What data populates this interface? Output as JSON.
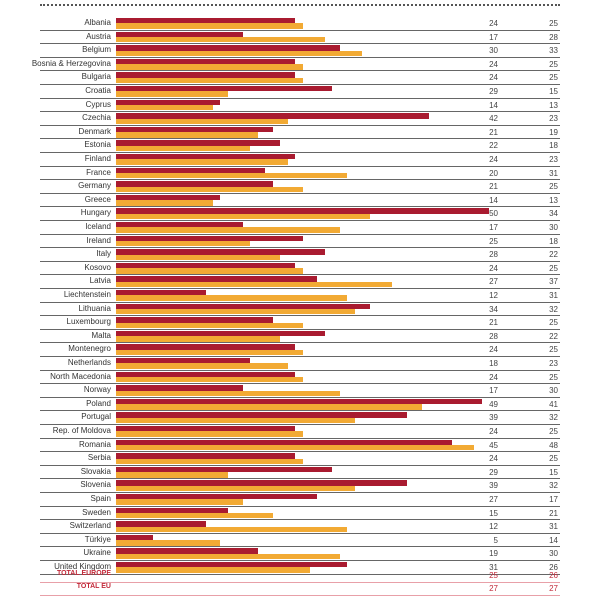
{
  "chart_data": {
    "type": "bar",
    "orientation": "horizontal",
    "title": "",
    "xlabel": "",
    "ylabel": "",
    "xlim": [
      0,
      50
    ],
    "colors": {
      "series_red": "#a91b30",
      "series_orange": "#f2aa34",
      "totals_text": "#c22a3a"
    },
    "categories": [
      "Albania",
      "Austria",
      "Belgium",
      "Bosnia & Herzegovina",
      "Bulgaria",
      "Croatia",
      "Cyprus",
      "Czechia",
      "Denmark",
      "Estonia",
      "Finland",
      "France",
      "Germany",
      "Greece",
      "Hungary",
      "Iceland",
      "Ireland",
      "Italy",
      "Kosovo",
      "Latvia",
      "Liechtenstein",
      "Lithuania",
      "Luxembourg",
      "Malta",
      "Montenegro",
      "Netherlands",
      "North Macedonia",
      "Norway",
      "Poland",
      "Portugal",
      "Rep. of Moldova",
      "Romania",
      "Serbia",
      "Slovakia",
      "Slovenia",
      "Spain",
      "Sweden",
      "Switzerland",
      "Türkiye",
      "Ukraine",
      "United Kingdom"
    ],
    "series": [
      {
        "name": "series_red",
        "values": [
          24,
          17,
          30,
          24,
          24,
          29,
          14,
          42,
          21,
          22,
          24,
          20,
          21,
          14,
          50,
          17,
          25,
          28,
          24,
          27,
          12,
          34,
          21,
          28,
          24,
          18,
          24,
          17,
          49,
          39,
          24,
          45,
          24,
          29,
          39,
          27,
          15,
          12,
          5,
          19,
          31
        ]
      },
      {
        "name": "series_orange",
        "values": [
          25,
          28,
          33,
          25,
          25,
          15,
          13,
          23,
          19,
          18,
          23,
          31,
          25,
          13,
          34,
          30,
          18,
          22,
          25,
          37,
          31,
          32,
          25,
          22,
          25,
          23,
          25,
          30,
          41,
          32,
          25,
          48,
          25,
          15,
          32,
          17,
          21,
          31,
          14,
          30,
          26
        ]
      }
    ],
    "totals": [
      {
        "label": "TOTAL EUROPE",
        "values": [
          25,
          26
        ]
      },
      {
        "label": "TOTAL EU",
        "values": [
          27,
          27
        ]
      }
    ]
  }
}
